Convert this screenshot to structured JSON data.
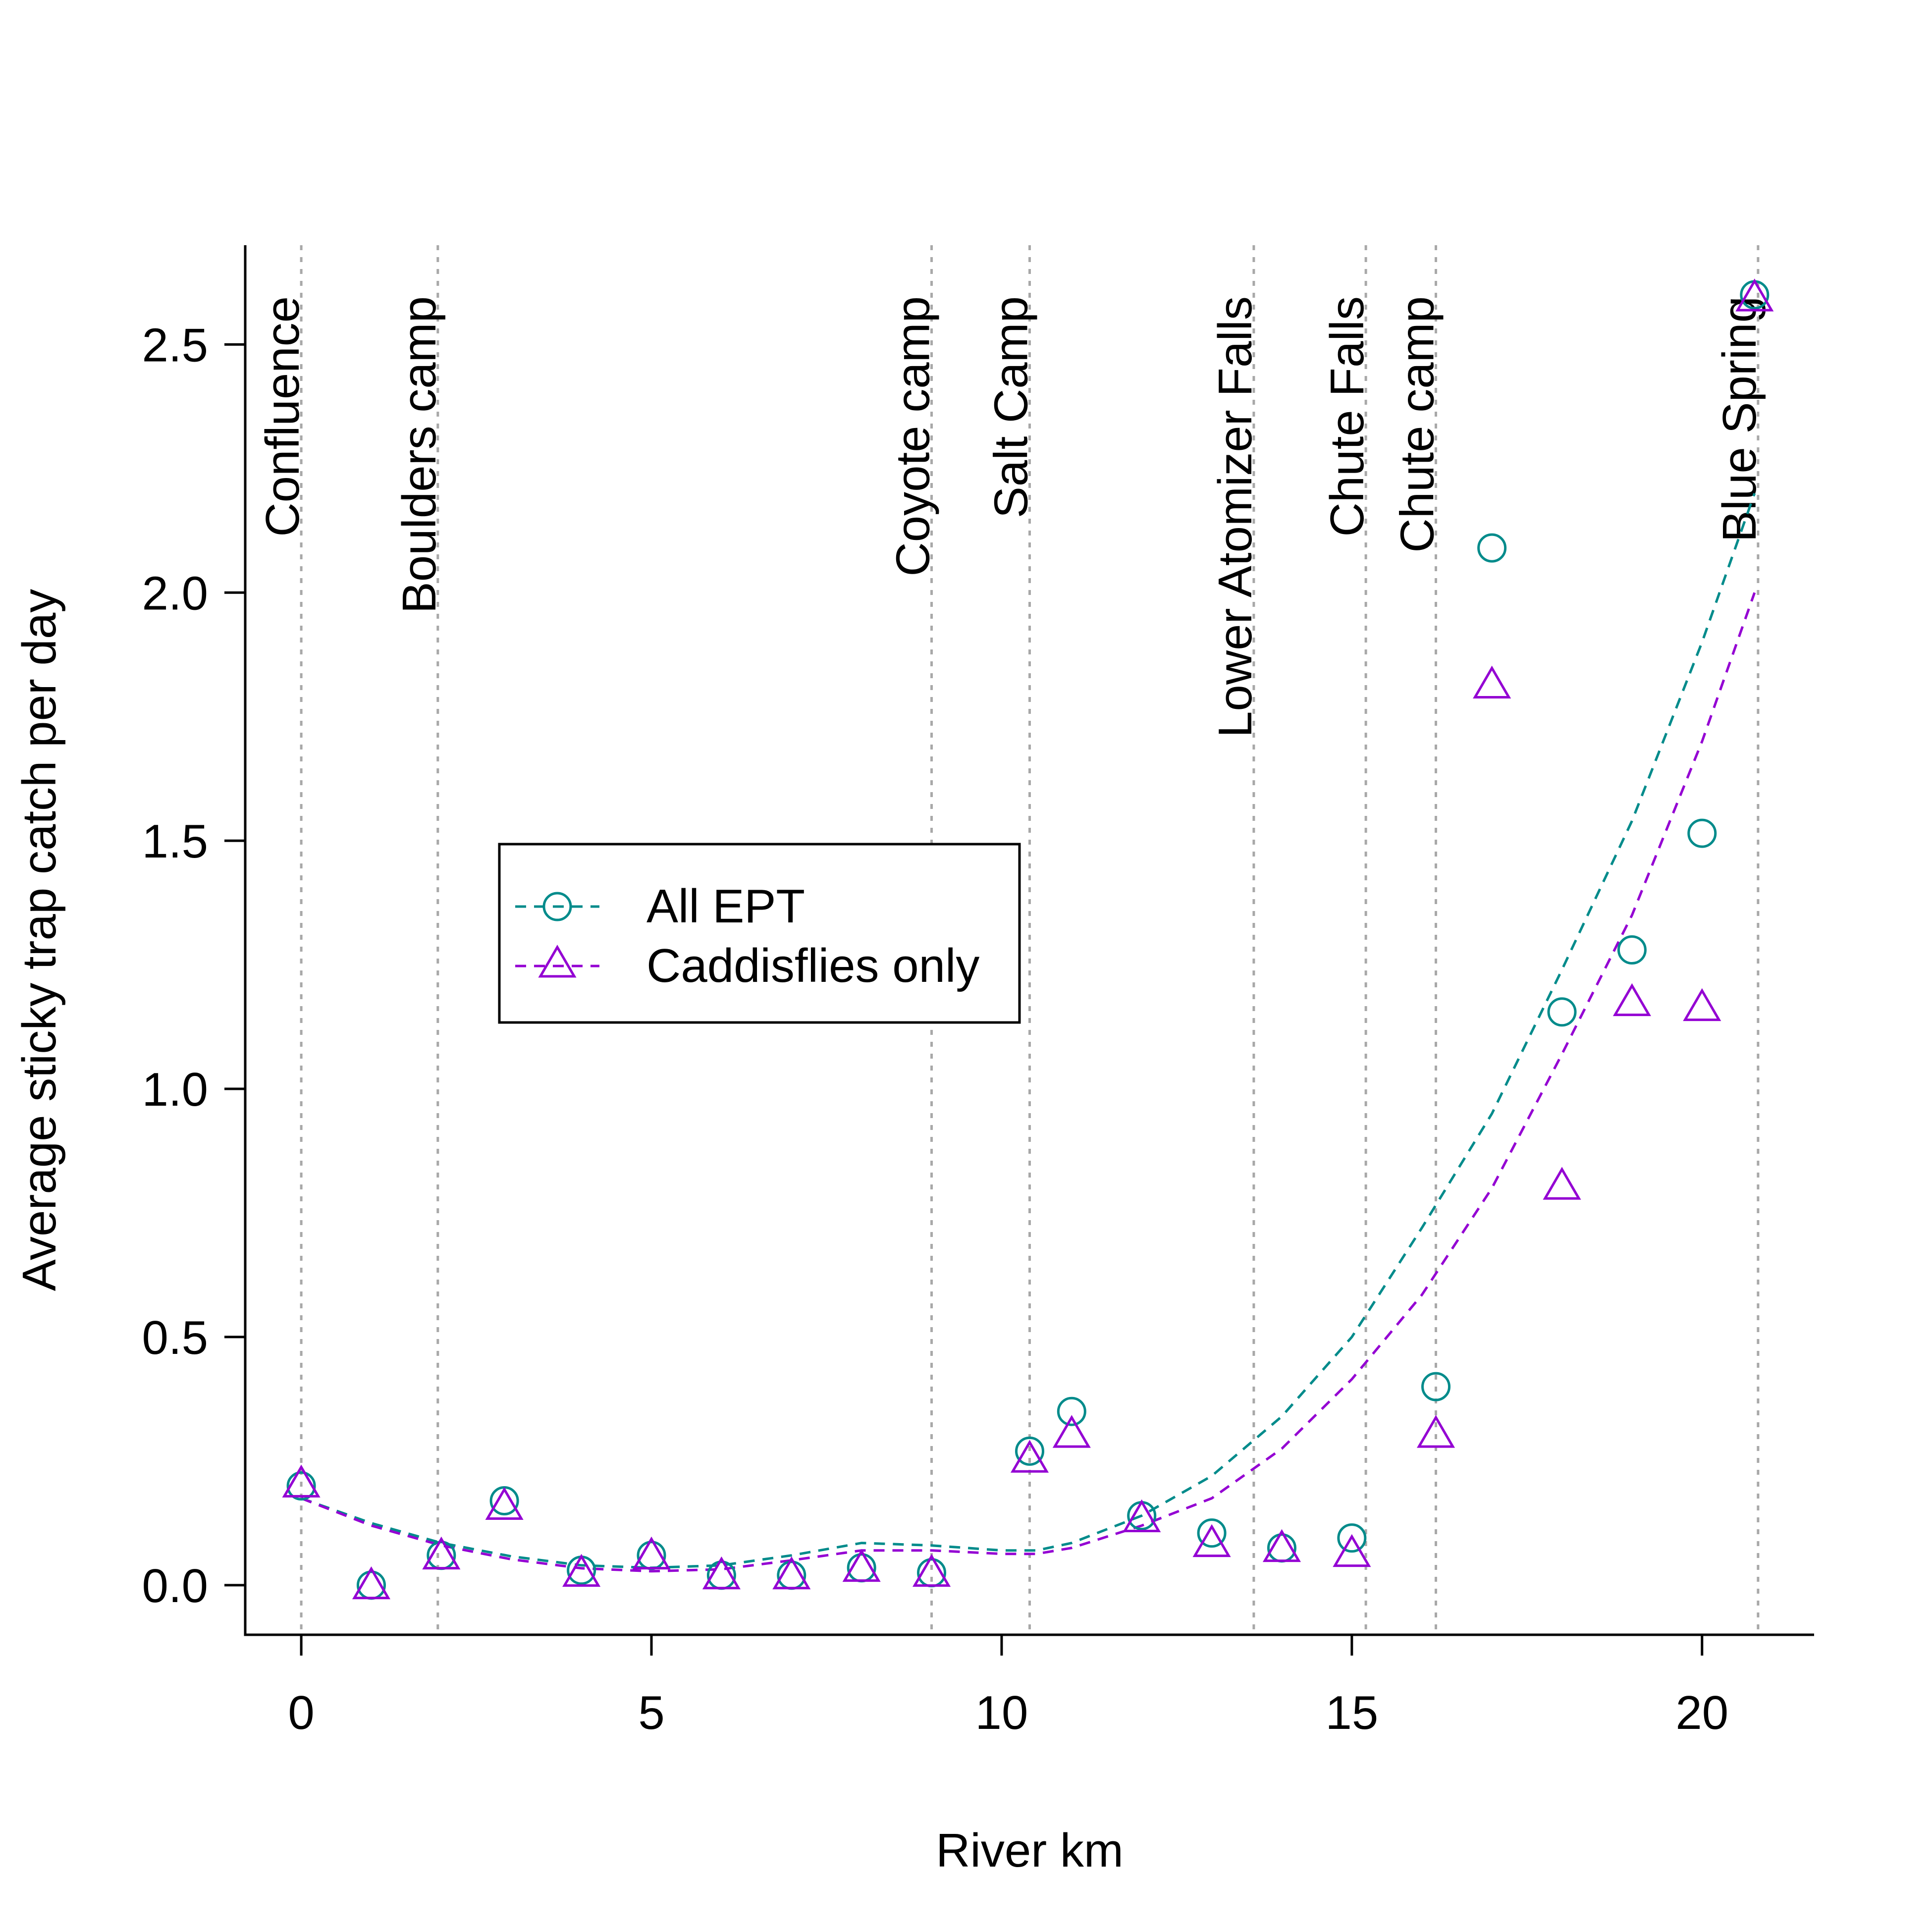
{
  "chart_data": {
    "type": "scatter",
    "xlabel": "River km",
    "ylabel": "Average sticky trap catch per day",
    "xlim": [
      -0.8,
      21.6
    ],
    "ylim": [
      -0.1,
      2.7
    ],
    "xticks": [
      0,
      5,
      10,
      15,
      20
    ],
    "yticks": [
      0.0,
      0.5,
      1.0,
      1.5,
      2.0,
      2.5
    ],
    "xtick_labels": [
      "0",
      "5",
      "10",
      "15",
      "20"
    ],
    "ytick_labels": [
      "0.0",
      "0.5",
      "1.0",
      "1.5",
      "2.0",
      "2.5"
    ],
    "grid": false,
    "legend_position": "center-left",
    "landmarks": [
      {
        "x": 0.0,
        "label": "Confluence"
      },
      {
        "x": 1.95,
        "label": "Boulders camp"
      },
      {
        "x": 9.0,
        "label": "Coyote camp"
      },
      {
        "x": 10.4,
        "label": "Salt Camp"
      },
      {
        "x": 13.6,
        "label": "Lower Atomizer Falls"
      },
      {
        "x": 15.2,
        "label": "Chute Falls"
      },
      {
        "x": 16.2,
        "label": "Chute camp"
      },
      {
        "x": 20.8,
        "label": "Blue Spring"
      }
    ],
    "series": [
      {
        "name": "All EPT",
        "marker": "circle",
        "color": "#008b8b",
        "x": [
          0,
          1,
          2,
          2.9,
          4,
          5,
          6,
          7,
          8,
          9,
          10.4,
          11,
          12,
          13,
          14,
          15,
          16.2,
          17,
          18,
          19,
          20,
          20.75
        ],
        "y": [
          0.2,
          0.0,
          0.06,
          0.17,
          0.03,
          0.06,
          0.02,
          0.02,
          0.035,
          0.025,
          0.27,
          0.35,
          0.14,
          0.105,
          0.075,
          0.095,
          0.4,
          2.09,
          1.155,
          1.28,
          1.515,
          2.6
        ],
        "fit_x": [
          0,
          1,
          2,
          3,
          4,
          5,
          6,
          7,
          8,
          9,
          10,
          10.5,
          11,
          12,
          13,
          14,
          15,
          16,
          17,
          18,
          19,
          20,
          20.75
        ],
        "fit_y": [
          0.175,
          0.125,
          0.085,
          0.058,
          0.04,
          0.035,
          0.04,
          0.06,
          0.085,
          0.08,
          0.07,
          0.07,
          0.085,
          0.14,
          0.22,
          0.34,
          0.5,
          0.72,
          0.95,
          1.24,
          1.54,
          1.9,
          2.2
        ]
      },
      {
        "name": "Caddisflies only",
        "marker": "triangle",
        "color": "#9400d3",
        "x": [
          0,
          1,
          2,
          2.9,
          4,
          5,
          6,
          7,
          8,
          9,
          10.4,
          11,
          12,
          13,
          14,
          15,
          16.2,
          17,
          18,
          19,
          20,
          20.75
        ],
        "y": [
          0.2,
          -0.005,
          0.055,
          0.155,
          0.02,
          0.055,
          0.015,
          0.015,
          0.03,
          0.02,
          0.25,
          0.3,
          0.13,
          0.08,
          0.07,
          0.06,
          0.3,
          1.81,
          0.8,
          1.17,
          1.16,
          2.59
        ],
        "fit_x": [
          0,
          1,
          2,
          3,
          4,
          5,
          6,
          7,
          8,
          9,
          10,
          10.5,
          11,
          12,
          13,
          14,
          15,
          16,
          17,
          18,
          19,
          20,
          20.75
        ],
        "fit_y": [
          0.175,
          0.12,
          0.08,
          0.052,
          0.034,
          0.028,
          0.032,
          0.05,
          0.07,
          0.07,
          0.063,
          0.063,
          0.075,
          0.12,
          0.175,
          0.275,
          0.415,
          0.585,
          0.8,
          1.07,
          1.35,
          1.7,
          2.0
        ]
      }
    ]
  }
}
